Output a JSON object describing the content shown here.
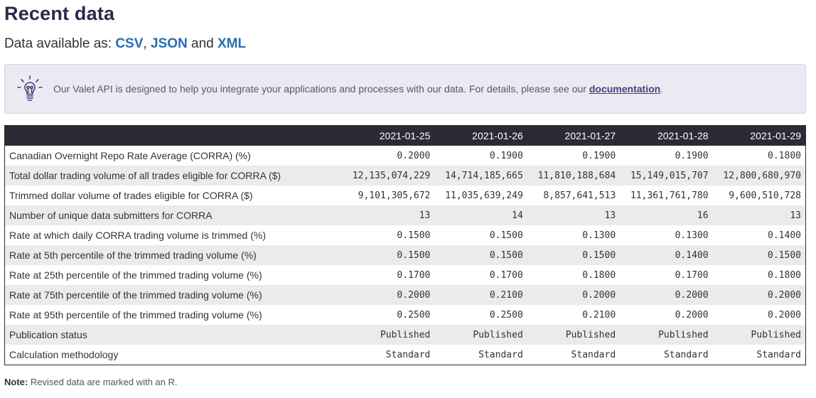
{
  "page": {
    "title": "Recent data",
    "formats_prefix": "Data available as: ",
    "formats": [
      "CSV",
      "JSON",
      "XML"
    ],
    "formats_sep1": ", ",
    "formats_sep2": " and "
  },
  "callout": {
    "icon": "lightbulb-icon",
    "text": "Our Valet API is designed to help you integrate your applications and processes with our data. For details, please see our ",
    "link": "documentation",
    "suffix": "."
  },
  "table": {
    "columns": [
      "2021-01-25",
      "2021-01-26",
      "2021-01-27",
      "2021-01-28",
      "2021-01-29"
    ],
    "rows": [
      {
        "label": "Canadian Overnight Repo Rate Average (CORRA) (%)",
        "values": [
          "0.2000",
          "0.1900",
          "0.1900",
          "0.1900",
          "0.1800"
        ]
      },
      {
        "label": "Total dollar trading volume of all trades eligible for CORRA ($)",
        "values": [
          "12,135,074,229",
          "14,714,185,665",
          "11,810,188,684",
          "15,149,015,707",
          "12,800,680,970"
        ]
      },
      {
        "label": "Trimmed dollar volume of trades eligible for CORRA ($)",
        "values": [
          "9,101,305,672",
          "11,035,639,249",
          "8,857,641,513",
          "11,361,761,780",
          "9,600,510,728"
        ]
      },
      {
        "label": "Number of unique data submitters for CORRA",
        "values": [
          "13",
          "14",
          "13",
          "16",
          "13"
        ]
      },
      {
        "label": "Rate at which daily CORRA trading volume is trimmed (%)",
        "values": [
          "0.1500",
          "0.1500",
          "0.1300",
          "0.1300",
          "0.1400"
        ]
      },
      {
        "label": "Rate at 5th percentile of the trimmed trading volume (%)",
        "values": [
          "0.1500",
          "0.1500",
          "0.1500",
          "0.1400",
          "0.1500"
        ]
      },
      {
        "label": "Rate at 25th percentile of the trimmed trading volume (%)",
        "values": [
          "0.1700",
          "0.1700",
          "0.1800",
          "0.1700",
          "0.1800"
        ]
      },
      {
        "label": "Rate at 75th percentile of the trimmed trading volume (%)",
        "values": [
          "0.2000",
          "0.2100",
          "0.2000",
          "0.2000",
          "0.2000"
        ]
      },
      {
        "label": "Rate at 95th percentile of the trimmed trading volume (%)",
        "values": [
          "0.2500",
          "0.2500",
          "0.2100",
          "0.2000",
          "0.2000"
        ]
      },
      {
        "label": "Publication status",
        "values": [
          "Published",
          "Published",
          "Published",
          "Published",
          "Published"
        ]
      },
      {
        "label": "Calculation methodology",
        "values": [
          "Standard",
          "Standard",
          "Standard",
          "Standard",
          "Standard"
        ]
      }
    ]
  },
  "note": {
    "label": "Note:",
    "text": " Revised data are marked with an R."
  },
  "colors": {
    "title": "#2a2a4a",
    "link": "#2a6db1",
    "callout_bg": "#ede9f3",
    "table_header_bg": "#2b2b35",
    "row_stripe": "#ebebeb"
  }
}
